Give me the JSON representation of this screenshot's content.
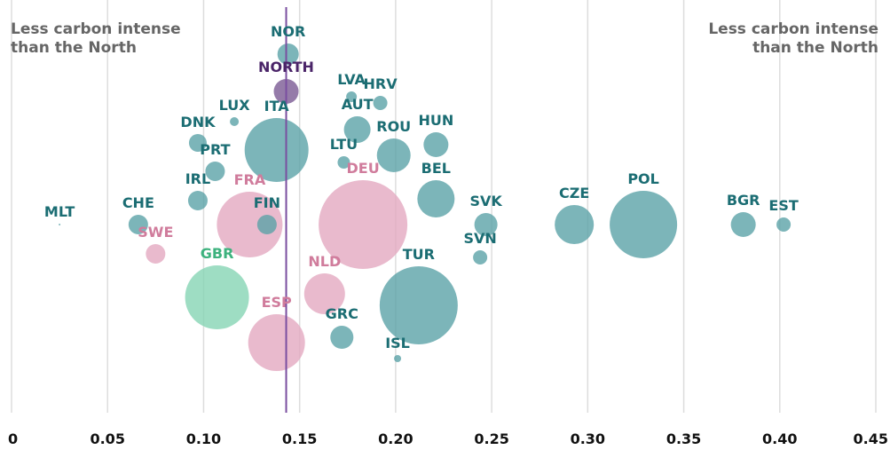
{
  "chart_data": {
    "type": "bubble",
    "annotations": [
      "Less carbon intense\nthan the North",
      "Less carbon intense\nthan the North"
    ],
    "categories": [
      "MLT",
      "CHE",
      "SWE",
      "IRL",
      "DNK",
      "PRT",
      "GBR",
      "LUX",
      "FRA",
      "FIN",
      "ITA",
      "ESP",
      "NORTH",
      "NOR",
      "NLD",
      "GRC",
      "LTU",
      "LVA",
      "AUT",
      "DEU",
      "HRV",
      "ROU",
      "ISL",
      "TUR",
      "BEL",
      "HUN",
      "SVN",
      "SVK",
      "CZE",
      "POL",
      "BGR",
      "EST"
    ],
    "x": [
      0.025,
      0.066,
      0.075,
      0.097,
      0.097,
      0.106,
      0.107,
      0.116,
      0.124,
      0.133,
      0.138,
      0.138,
      0.143,
      0.144,
      0.163,
      0.172,
      0.173,
      0.177,
      0.18,
      0.183,
      0.192,
      0.199,
      0.201,
      0.212,
      0.221,
      0.221,
      0.244,
      0.247,
      0.293,
      0.329,
      0.381,
      0.402
    ],
    "sizes": [
      1,
      121,
      121,
      121,
      100,
      121,
      1296,
      25,
      1369,
      121,
      1296,
      1024,
      196,
      144,
      529,
      169,
      49,
      36,
      225,
      2500,
      64,
      361,
      16,
      1936,
      441,
      196,
      64,
      169,
      484,
      1444,
      196,
      64
    ],
    "colors": [
      "#5ba3a8",
      "#5ba3a8",
      "#e3a9c0",
      "#5ba3a8",
      "#5ba3a8",
      "#5ba3a8",
      "#86d4b4",
      "#5ba3a8",
      "#e3a9c0",
      "#5ba3a8",
      "#5ba3a8",
      "#e3a9c0",
      "#7a5a94",
      "#5ba3a8",
      "#e3a9c0",
      "#5ba3a8",
      "#5ba3a8",
      "#5ba3a8",
      "#5ba3a8",
      "#e3a9c0",
      "#5ba3a8",
      "#5ba3a8",
      "#5ba3a8",
      "#5ba3a8",
      "#5ba3a8",
      "#5ba3a8",
      "#5ba3a8",
      "#5ba3a8",
      "#5ba3a8",
      "#5ba3a8",
      "#5ba3a8",
      "#5ba3a8"
    ],
    "label_colors": [
      "#1b6d73",
      "#1b6d73",
      "#d07c9c",
      "#1b6d73",
      "#1b6d73",
      "#1b6d73",
      "#3db27e",
      "#1b6d73",
      "#d07c9c",
      "#1b6d73",
      "#1b6d73",
      "#d07c9c",
      "#4a2468",
      "#1b6d73",
      "#d07c9c",
      "#1b6d73",
      "#1b6d73",
      "#1b6d73",
      "#1b6d73",
      "#d07c9c",
      "#1b6d73",
      "#1b6d73",
      "#1b6d73",
      "#1b6d73",
      "#1b6d73",
      "#1b6d73",
      "#1b6d73",
      "#1b6d73",
      "#1b6d73",
      "#1b6d73",
      "#1b6d73",
      "#1b6d73"
    ],
    "reference_x": 0.143,
    "reference_color": "#7a4fa0",
    "xlim": [
      0,
      0.45
    ],
    "xticks": [
      0,
      0.05,
      {
        "value": 0.1,
        "label": "0.10"
      },
      0.15,
      {
        "value": 0.2,
        "label": "0.20"
      },
      0.25,
      {
        "value": 0.3,
        "label": "0.30"
      },
      0.35,
      {
        "value": 0.4,
        "label": "0.40"
      },
      0.45
    ],
    "grid": true
  }
}
